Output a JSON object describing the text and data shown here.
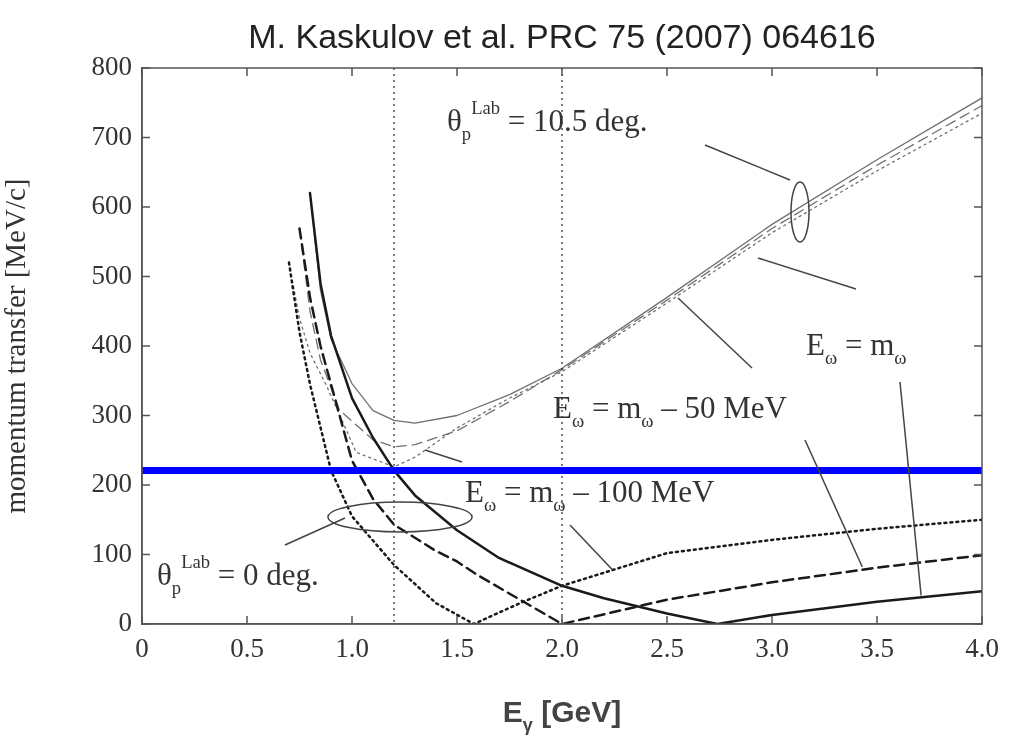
{
  "chart_data": {
    "type": "line",
    "title": "M. Kaskulov et al. PRC 75 (2007) 064616",
    "xlabel": "E$_{γ}$ [GeV]",
    "ylabel": "momentum transfer [MeV/c]",
    "xlim": [
      0,
      4
    ],
    "ylim": [
      0,
      800
    ],
    "xticks": [
      0,
      0.5,
      {
        "value": 1,
        "label": "1.0"
      },
      1.5,
      {
        "value": 2,
        "label": "2.0"
      },
      2.5,
      {
        "value": 3,
        "label": "3.0"
      },
      3.5,
      {
        "value": 4,
        "label": "4.0"
      }
    ],
    "yticks": [
      0,
      100,
      200,
      300,
      400,
      500,
      600,
      700,
      800
    ],
    "marker": "none",
    "legend": false,
    "series": [
      {
        "color": "#1a1a1a",
        "line_style": "solid",
        "x": [
          0.8,
          0.85,
          0.9,
          1.0,
          1.1,
          1.2,
          1.3,
          1.5,
          1.7,
          2.0,
          2.2,
          2.5,
          2.74,
          3.0,
          3.5,
          4.0
        ],
        "values": [
          620,
          490,
          415,
          325,
          268,
          221,
          185,
          135,
          95,
          55,
          37,
          15,
          0,
          13,
          32,
          47
        ]
      },
      {
        "color": "#1a1a1a",
        "line_style": "dashed",
        "x": [
          0.75,
          0.8,
          0.85,
          0.9,
          1.0,
          1.1,
          1.2,
          1.4,
          1.5,
          1.6,
          1.8,
          2.0,
          2.5,
          3.0,
          3.5,
          4.0
        ],
        "values": [
          569,
          470,
          400,
          345,
          235,
          180,
          143,
          105,
          90,
          70,
          35,
          0,
          35,
          60,
          81,
          99
        ]
      },
      {
        "color": "#1a1a1a",
        "line_style": "dotted",
        "x": [
          0.7,
          0.75,
          0.8,
          0.9,
          1.0,
          1.2,
          1.4,
          1.58,
          1.8,
          2.0,
          2.5,
          3.0,
          3.5,
          4.0
        ],
        "values": [
          520,
          420,
          345,
          221,
          155,
          85,
          30,
          0,
          30,
          55,
          102,
          121,
          137,
          150
        ]
      },
      {
        "color": "#707070",
        "line_style": "solid",
        "x": [
          0.8,
          0.85,
          0.9,
          1.0,
          1.1,
          1.2,
          1.3,
          1.5,
          1.75,
          2.0,
          2.5,
          3.0,
          3.5,
          4.0
        ],
        "values": [
          620,
          480,
          410,
          346,
          307,
          293,
          289,
          300,
          330,
          368,
          470,
          575,
          668,
          757
        ]
      },
      {
        "color": "#707070",
        "line_style": "dashed",
        "x": [
          0.75,
          0.8,
          0.85,
          0.94,
          1.1,
          1.2,
          1.3,
          1.5,
          1.75,
          2.0,
          2.5,
          3.0,
          3.5,
          4.0
        ],
        "values": [
          569,
          450,
          380,
          308,
          265,
          255,
          258,
          278,
          320,
          366,
          466,
          569,
          660,
          746
        ]
      },
      {
        "color": "#707070",
        "line_style": "dotted",
        "x": [
          0.7,
          0.75,
          0.8,
          0.88,
          1.02,
          1.2,
          1.3,
          1.5,
          1.75,
          2.0,
          2.5,
          3.0,
          3.5,
          4.0
        ],
        "values": [
          520,
          440,
          390,
          342,
          247,
          226,
          240,
          282,
          325,
          363,
          462,
          563,
          652,
          735
        ]
      }
    ],
    "ref_lines": [
      {
        "axis": "x",
        "value": 1.2,
        "color": "#333333",
        "line_style": "dotted"
      },
      {
        "axis": "x",
        "value": 2,
        "color": "#333333",
        "line_style": "dotted"
      },
      {
        "axis": "y",
        "value": 221,
        "color": "#0000ff",
        "line_style": "solid"
      }
    ],
    "annotations": [
      "θ$_{p}$$^{Lab}$ = 10.5 deg.",
      {
        "text": "E$_{ω}$ = m$_{ω}$",
        "x": 3.71,
        "y": 41
      },
      {
        "text": "E$_{ω}$ = m$_{ω}$ – 50 MeV",
        "x": 3.43,
        "y": 82
      },
      {
        "text": "E$_{ω}$ = m$_{ω}$ – 100 MeV",
        "x": 2.24,
        "y": 78
      },
      "θ$_{p}$$^{Lab}$ = 0 deg."
    ]
  }
}
